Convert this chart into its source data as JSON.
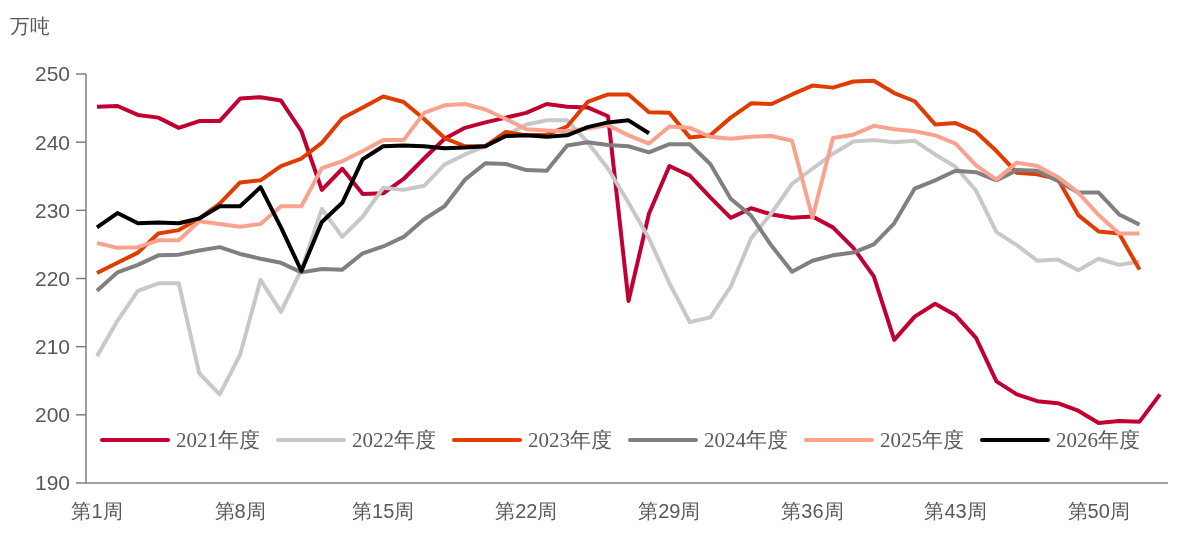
{
  "chart_data": {
    "type": "line",
    "ylabel": "万吨",
    "categories": [
      "第1周",
      null,
      null,
      null,
      null,
      null,
      null,
      "第8周",
      null,
      null,
      null,
      null,
      null,
      null,
      "第15周",
      null,
      null,
      null,
      null,
      null,
      null,
      "第22周",
      null,
      null,
      null,
      null,
      null,
      null,
      "第29周",
      null,
      null,
      null,
      null,
      null,
      null,
      "第36周",
      null,
      null,
      null,
      null,
      null,
      null,
      "第43周",
      null,
      null,
      null,
      null,
      null,
      null,
      "第50周",
      null,
      null,
      null
    ],
    "ylim": [
      190,
      250
    ],
    "yticks": [
      190,
      200,
      210,
      220,
      230,
      240,
      250
    ],
    "grid": false,
    "legend": "bottom",
    "line_style": "solid",
    "marker": "none",
    "series": [
      {
        "name": "2021年度",
        "color": "#c00032",
        "values": [
          245.2,
          245.3,
          244.0,
          243.6,
          242.1,
          243.1,
          243.1,
          246.4,
          246.6,
          246.1,
          241.6,
          233.0,
          236.1,
          232.4,
          232.5,
          234.6,
          237.6,
          240.5,
          242.1,
          242.9,
          243.6,
          244.3,
          245.6,
          245.2,
          245.1,
          243.8,
          216.7,
          229.5,
          236.5,
          235.1,
          231.9,
          228.9,
          230.3,
          229.4,
          228.9,
          229.1,
          227.5,
          224.5,
          220.3,
          211.0,
          214.4,
          216.3,
          214.6,
          211.3,
          204.9,
          203.0,
          202.0,
          201.7,
          200.6,
          198.8,
          199.1,
          199.0,
          203.0
        ]
      },
      {
        "name": "2022年度",
        "color": "#c8c8c8",
        "values": [
          208.6,
          213.8,
          218.2,
          219.3,
          219.3,
          206.1,
          203.0,
          208.8,
          219.8,
          215.1,
          221.3,
          230.2,
          226.1,
          229.1,
          233.3,
          233.0,
          233.6,
          236.7,
          238.2,
          239.4,
          241.0,
          242.6,
          243.2,
          243.2,
          240.0,
          236.1,
          231.1,
          225.9,
          219.3,
          213.6,
          214.3,
          218.8,
          225.9,
          229.6,
          233.9,
          236.1,
          238.3,
          240.1,
          240.3,
          240.0,
          240.2,
          238.2,
          236.4,
          232.9,
          226.8,
          224.9,
          222.6,
          222.8,
          221.2,
          222.9,
          222.0,
          222.5,
          null
        ]
      },
      {
        "name": "2023年度",
        "color": "#e03c00",
        "values": [
          220.8,
          222.3,
          223.8,
          226.6,
          227.1,
          228.8,
          231.0,
          234.1,
          234.4,
          236.5,
          237.6,
          239.9,
          243.5,
          245.1,
          246.7,
          245.9,
          243.4,
          240.6,
          239.4,
          239.4,
          241.5,
          241.0,
          241.1,
          242.3,
          245.9,
          247.0,
          247.0,
          244.4,
          244.3,
          240.7,
          241.0,
          243.6,
          245.7,
          245.6,
          247.0,
          248.3,
          248.0,
          248.9,
          249.0,
          247.2,
          246.0,
          242.6,
          242.8,
          241.5,
          238.7,
          235.5,
          235.3,
          234.6,
          229.3,
          226.9,
          226.6,
          221.3,
          null
        ]
      },
      {
        "name": "2024年度",
        "color": "#808080",
        "values": [
          218.2,
          220.9,
          222.0,
          223.4,
          223.5,
          224.1,
          224.6,
          223.6,
          222.9,
          222.3,
          220.9,
          221.4,
          221.3,
          223.7,
          224.7,
          226.1,
          228.7,
          230.6,
          234.5,
          236.9,
          236.8,
          235.9,
          235.8,
          239.5,
          240.0,
          239.6,
          239.4,
          238.5,
          239.7,
          239.7,
          236.8,
          231.7,
          229.2,
          224.8,
          221.0,
          222.6,
          223.4,
          223.8,
          225.0,
          228.1,
          233.2,
          234.4,
          235.8,
          235.6,
          234.4,
          235.9,
          235.8,
          234.3,
          232.6,
          232.6,
          229.4,
          227.9,
          null
        ]
      },
      {
        "name": "2025年度",
        "color": "#f9a38f",
        "values": [
          225.2,
          224.5,
          224.6,
          225.6,
          225.6,
          228.4,
          228.0,
          227.6,
          228.0,
          230.6,
          230.6,
          236.2,
          237.2,
          238.7,
          240.3,
          240.3,
          244.3,
          245.4,
          245.6,
          244.8,
          243.4,
          241.9,
          241.7,
          241.6,
          242.0,
          242.5,
          241.0,
          239.8,
          242.3,
          242.1,
          240.8,
          240.5,
          240.8,
          240.9,
          240.2,
          228.9,
          240.6,
          241.1,
          242.4,
          241.9,
          241.6,
          241.0,
          239.8,
          236.6,
          234.5,
          237.0,
          236.5,
          234.9,
          232.6,
          229.3,
          226.6,
          226.6,
          null
        ]
      },
      {
        "name": "2026年度",
        "color": "#000000",
        "values": [
          227.5,
          229.6,
          228.1,
          228.2,
          228.1,
          228.8,
          230.6,
          230.6,
          233.4,
          227.5,
          221.1,
          228.3,
          231.1,
          237.5,
          239.4,
          239.5,
          239.4,
          239.1,
          239.2,
          239.4,
          240.9,
          241.0,
          240.8,
          241.0,
          242.2,
          242.9,
          243.2,
          241.3,
          null,
          null,
          null,
          null,
          null,
          null,
          null,
          null,
          null,
          null,
          null,
          null,
          null,
          null,
          null,
          null,
          null,
          null,
          null,
          null,
          null,
          null,
          null,
          null,
          null
        ]
      }
    ]
  }
}
